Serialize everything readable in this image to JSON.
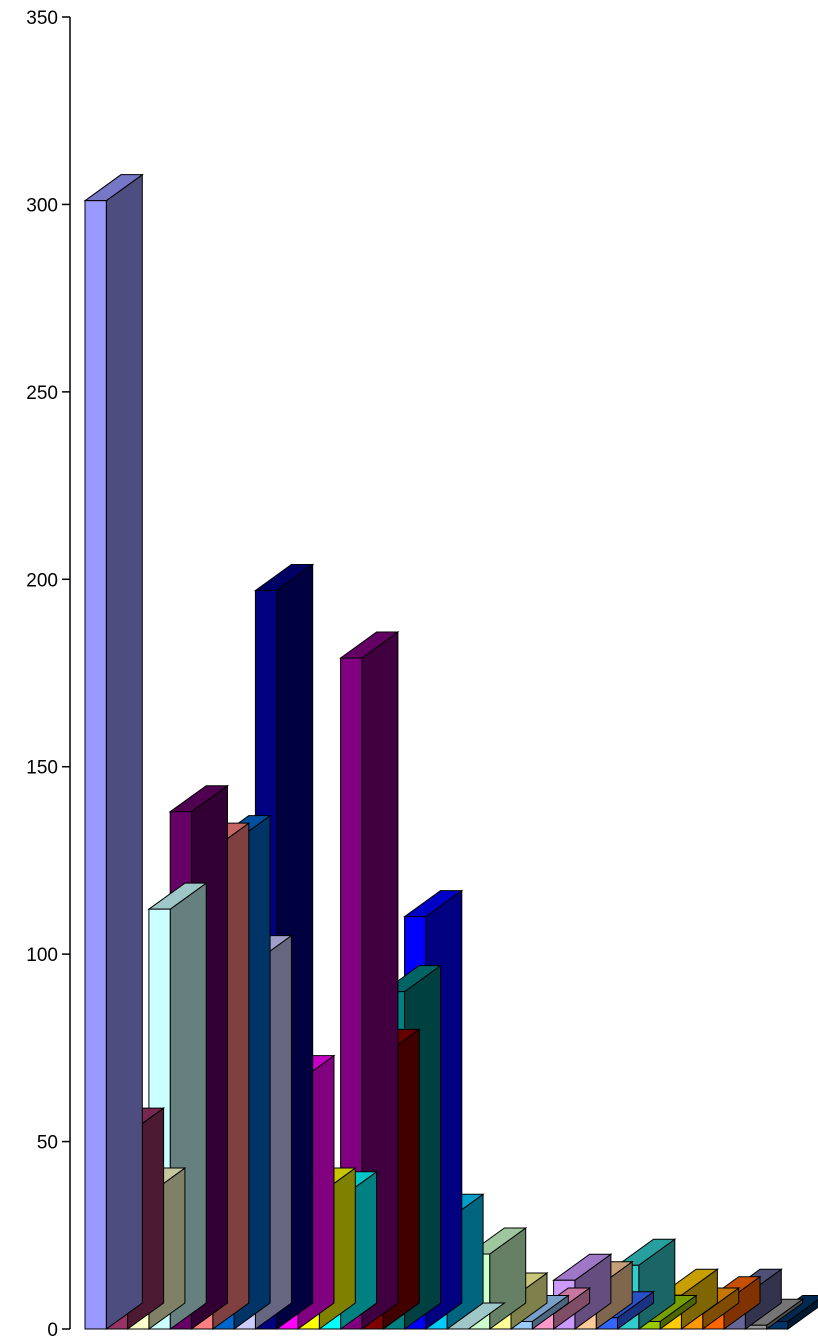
{
  "chart_data": {
    "type": "bar",
    "style": "3d",
    "title": "",
    "xlabel": "",
    "ylabel": "",
    "ylim": [
      0,
      350
    ],
    "yticks": [
      0,
      50,
      100,
      150,
      200,
      250,
      300,
      350
    ],
    "grid": false,
    "legend": "none",
    "values": [
      301,
      52,
      36,
      112,
      138,
      128,
      130,
      98,
      197,
      66,
      36,
      35,
      179,
      73,
      90,
      110,
      29,
      0,
      20,
      8,
      2,
      4,
      13,
      11,
      3,
      17,
      2,
      9,
      4,
      7,
      9,
      1,
      2
    ],
    "colors": [
      "#9999ff",
      "#993366",
      "#ffffcc",
      "#ccffff",
      "#660066",
      "#ff8080",
      "#0066cc",
      "#ccccff",
      "#000080",
      "#ff00ff",
      "#ffff00",
      "#00ffff",
      "#800080",
      "#800000",
      "#008080",
      "#0000ff",
      "#00ccff",
      "#ccffff",
      "#ccffcc",
      "#ffff99",
      "#99ccff",
      "#ff99cc",
      "#cc99ff",
      "#ffcc99",
      "#3366ff",
      "#33cccc",
      "#99cc00",
      "#ffcc00",
      "#ff9900",
      "#ff6600",
      "#666699",
      "#969696",
      "#003366"
    ]
  }
}
